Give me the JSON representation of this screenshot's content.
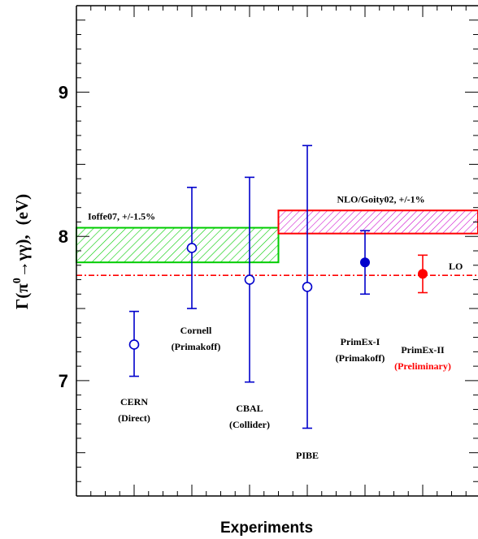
{
  "chart_data": {
    "type": "scatter",
    "xlabel": "Experiments",
    "ylabel_parts": {
      "gamma": "Γ(π",
      "sup": "0",
      "arrow": "→γγ),",
      "unit": "(eV)"
    },
    "ylim": [
      6.2,
      9.6
    ],
    "yticks": [
      {
        "value": 7,
        "label": "7"
      },
      {
        "value": 8,
        "label": "8"
      },
      {
        "value": 9,
        "label": "9"
      }
    ],
    "experiments": [
      {
        "name": "CERN",
        "sub": "(Direct)",
        "value": 7.25,
        "err_low": 0.22,
        "err_high": 0.23,
        "marker": "open",
        "color": "#0000cc",
        "sub_color": "#000000"
      },
      {
        "name": "Cornell",
        "sub": "(Primakoff)",
        "value": 7.92,
        "err_low": 0.42,
        "err_high": 0.42,
        "marker": "open",
        "color": "#0000cc",
        "sub_color": "#000000"
      },
      {
        "name": "CBAL",
        "sub": "(Collider)",
        "value": 7.7,
        "err_low": 0.71,
        "err_high": 0.71,
        "marker": "open",
        "color": "#0000cc",
        "sub_color": "#000000"
      },
      {
        "name": "PIBE",
        "sub": "",
        "value": 7.65,
        "err_low": 0.98,
        "err_high": 0.98,
        "marker": "open",
        "color": "#0000cc",
        "sub_color": "#000000"
      },
      {
        "name": "PrimEx-I",
        "sub": "(Primakoff)",
        "value": 7.82,
        "err_low": 0.22,
        "err_high": 0.22,
        "marker": "filled",
        "color": "#0000cc",
        "sub_color": "#000000"
      },
      {
        "name": "PrimEx-II",
        "sub": "(Preliminary)",
        "value": 7.74,
        "err_low": 0.13,
        "err_high": 0.13,
        "marker": "filled",
        "color": "#ff0000",
        "sub_color": "#ff0000"
      }
    ],
    "bands": [
      {
        "label": "Ioffe07, +/-1.5%",
        "low": 7.82,
        "high": 8.06,
        "x_from": 0,
        "x_to": 3.5,
        "color": "#00cc00",
        "hatch": "#00cc00"
      },
      {
        "label": "NLO/Goity02, +/-1%",
        "low": 8.02,
        "high": 8.18,
        "x_from": 3.5,
        "x_to": 7,
        "color": "#ff0000",
        "hatch": "#cc00cc"
      }
    ],
    "reference_line": {
      "label": "LO",
      "value": 7.73,
      "color": "#ff0000"
    },
    "grid": false
  }
}
